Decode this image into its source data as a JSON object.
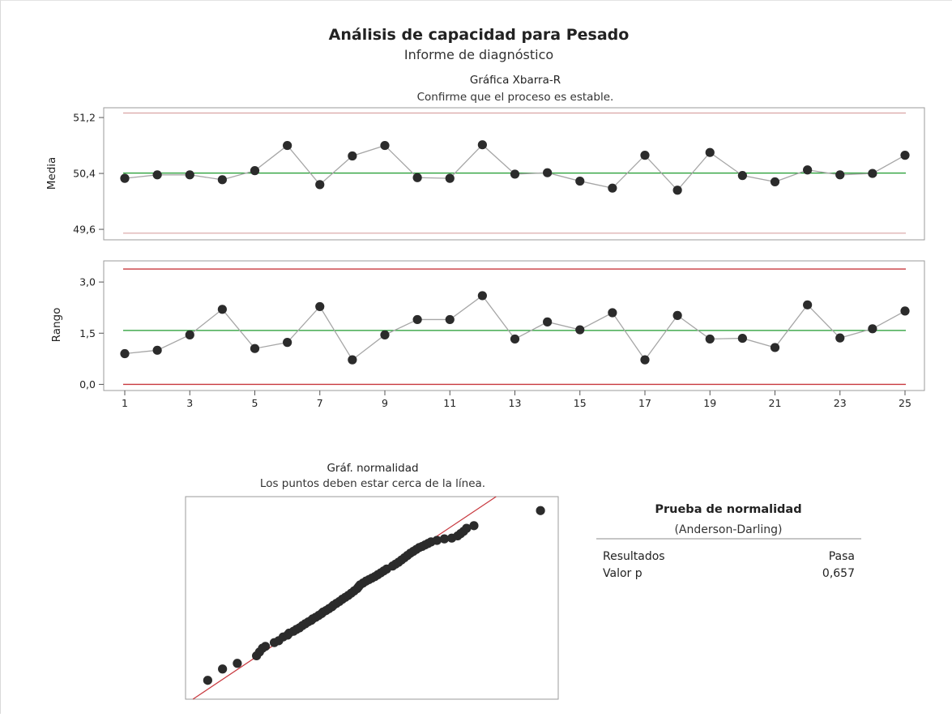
{
  "header": {
    "title": "Análisis de capacidad para Pesado",
    "subtitle": "Informe de diagnóstico"
  },
  "xbar_chart": {
    "title": "Gráfica Xbarra-R",
    "subtitle": "Confirme que el proceso es estable."
  },
  "normality_chart": {
    "title": "Gráf. normalidad",
    "subtitle": "Los puntos deben estar cerca de la línea."
  },
  "normality_test": {
    "title": "Prueba de normalidad",
    "method": "(Anderson-Darling)",
    "rows": [
      {
        "label": "Resultados",
        "value": "Pasa"
      },
      {
        "label": "Valor p",
        "value": "0,657"
      }
    ]
  },
  "colors": {
    "points": "#2b2b2b",
    "connect_line": "#a6a6a6",
    "center_line": "#1e9a2e",
    "limit_line_mean": "#d9a3a3",
    "limit_line_range": "#c8383e",
    "fit_line": "#c8383e",
    "frame": "#9b9b9b"
  },
  "chart_data": [
    {
      "type": "line",
      "name": "xbar",
      "ylabel": "Media",
      "x": [
        1,
        2,
        3,
        4,
        5,
        6,
        7,
        8,
        9,
        10,
        11,
        12,
        13,
        14,
        15,
        16,
        17,
        18,
        19,
        20,
        21,
        22,
        23,
        24,
        25
      ],
      "y": [
        50.33,
        50.38,
        50.38,
        50.31,
        50.44,
        50.8,
        50.24,
        50.65,
        50.8,
        50.34,
        50.33,
        50.81,
        50.39,
        50.41,
        50.29,
        50.19,
        50.66,
        50.16,
        50.7,
        50.37,
        50.28,
        50.45,
        50.38,
        50.4,
        50.66
      ],
      "center_line": 50.405,
      "limits": [
        49.545,
        51.265
      ],
      "ylim": [
        49.45,
        51.34
      ],
      "yticks": [
        49.6,
        50.4,
        51.2
      ],
      "ytick_labels": [
        "49,6",
        "50,4",
        "51,2"
      ],
      "grid": false
    },
    {
      "type": "line",
      "name": "range",
      "ylabel": "Rango",
      "x": [
        1,
        2,
        3,
        4,
        5,
        6,
        7,
        8,
        9,
        10,
        11,
        12,
        13,
        14,
        15,
        16,
        17,
        18,
        19,
        20,
        21,
        22,
        23,
        24,
        25
      ],
      "y": [
        0.9,
        1.0,
        1.45,
        2.2,
        1.05,
        1.23,
        2.28,
        0.72,
        1.45,
        1.9,
        1.9,
        2.6,
        1.33,
        1.83,
        1.6,
        2.1,
        0.72,
        2.02,
        1.33,
        1.35,
        1.08,
        2.33,
        1.36,
        1.63,
        2.15
      ],
      "center_line": 1.58,
      "limits": [
        0.0,
        3.38
      ],
      "ylim": [
        -0.18,
        3.62
      ],
      "yticks": [
        0.0,
        1.5,
        3.0
      ],
      "ytick_labels": [
        "0,0",
        "1,5",
        "3,0"
      ],
      "xticks": [
        1,
        3,
        5,
        7,
        9,
        11,
        13,
        15,
        17,
        19,
        21,
        23,
        25
      ],
      "grid": false
    },
    {
      "type": "scatter",
      "name": "normal-probability",
      "x": [
        49.45,
        49.55,
        49.65,
        49.78,
        49.8,
        49.82,
        49.84,
        49.9,
        49.93,
        49.96,
        49.99,
        50.0,
        50.03,
        50.05,
        50.07,
        50.09,
        50.11,
        50.13,
        50.15,
        50.16,
        50.18,
        50.2,
        50.22,
        50.23,
        50.25,
        50.27,
        50.29,
        50.3,
        50.32,
        50.34,
        50.36,
        50.38,
        50.4,
        50.42,
        50.44,
        50.46,
        50.47,
        50.48,
        50.5,
        50.52,
        50.54,
        50.56,
        50.58,
        50.6,
        50.62,
        50.64,
        50.66,
        50.7,
        50.72,
        50.74,
        50.76,
        50.78,
        50.8,
        50.82,
        50.84,
        50.86,
        50.88,
        50.9,
        50.92,
        50.94,
        50.96,
        51.0,
        51.05,
        51.1,
        51.14,
        51.16,
        51.18,
        51.2,
        51.25,
        51.7
      ],
      "y": [
        -2.45,
        -2.15,
        -2.0,
        -1.8,
        -1.7,
        -1.6,
        -1.55,
        -1.45,
        -1.4,
        -1.3,
        -1.25,
        -1.2,
        -1.15,
        -1.1,
        -1.06,
        -1.0,
        -0.95,
        -0.9,
        -0.86,
        -0.82,
        -0.78,
        -0.73,
        -0.68,
        -0.64,
        -0.6,
        -0.55,
        -0.5,
        -0.46,
        -0.41,
        -0.36,
        -0.3,
        -0.25,
        -0.2,
        -0.14,
        -0.08,
        -0.02,
        0.03,
        0.08,
        0.13,
        0.18,
        0.22,
        0.26,
        0.3,
        0.35,
        0.4,
        0.45,
        0.5,
        0.58,
        0.63,
        0.68,
        0.74,
        0.8,
        0.86,
        0.92,
        0.97,
        1.02,
        1.07,
        1.1,
        1.14,
        1.18,
        1.22,
        1.26,
        1.3,
        1.32,
        1.38,
        1.44,
        1.5,
        1.58,
        1.65,
        2.05
      ],
      "fit_line": {
        "x": [
          49.35,
          51.4
        ],
        "y": [
          -2.95,
          2.42
        ]
      },
      "xlim": [
        49.3,
        51.82
      ],
      "ylim": [
        -2.95,
        2.42
      ]
    }
  ]
}
